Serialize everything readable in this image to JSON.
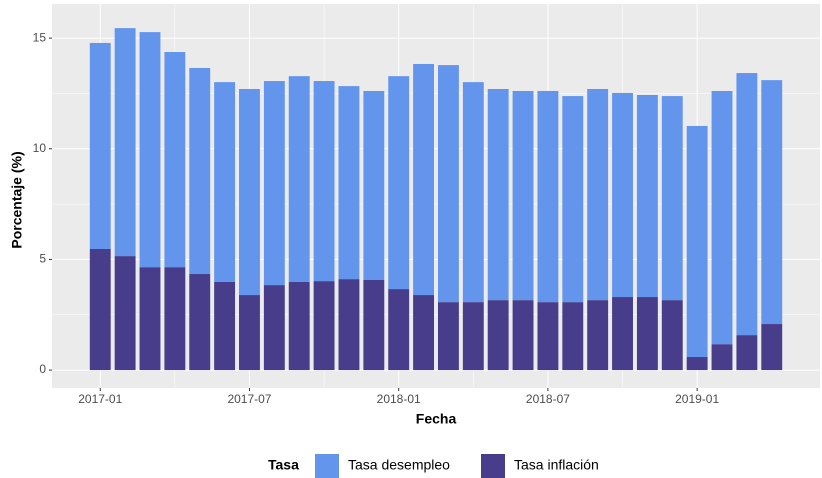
{
  "chart_data": {
    "type": "stacked-bar",
    "x_label": "Fecha",
    "y_label": "Porcentaje (%)",
    "legend_title": "Tasa",
    "legend": "bottom",
    "grid": true,
    "x": [
      "2017-01",
      "2017-02",
      "2017-03",
      "2017-04",
      "2017-05",
      "2017-06",
      "2017-07",
      "2017-08",
      "2017-09",
      "2017-10",
      "2017-11",
      "2017-12",
      "2018-01",
      "2018-02",
      "2018-03",
      "2018-04",
      "2018-05",
      "2018-06",
      "2018-07",
      "2018-08",
      "2018-09",
      "2018-10",
      "2018-11",
      "2018-12",
      "2019-01",
      "2019-02",
      "2019-03",
      "2019-04"
    ],
    "xticks": [
      "2017-01",
      "2017-07",
      "2018-01",
      "2018-07",
      "2019-01"
    ],
    "ylim": [
      -0.81,
      16.54
    ],
    "yticks": [
      0,
      5,
      10,
      15
    ],
    "series": [
      {
        "name": "Tasa desempleo",
        "color": "#6495ed",
        "values": [
          9.31,
          10.3,
          10.62,
          9.72,
          9.31,
          9.03,
          9.31,
          9.22,
          9.3,
          9.04,
          8.72,
          8.54,
          9.62,
          10.44,
          10.71,
          9.94,
          9.54,
          9.45,
          9.54,
          9.31,
          9.54,
          9.22,
          9.13,
          9.22,
          10.44,
          11.44,
          11.84,
          11.02
        ]
      },
      {
        "name": "Tasa inflación",
        "color": "#483d8b",
        "values": [
          5.47,
          5.15,
          4.65,
          4.65,
          4.34,
          3.98,
          3.39,
          3.84,
          3.98,
          4.02,
          4.11,
          4.07,
          3.66,
          3.39,
          3.07,
          3.07,
          3.16,
          3.16,
          3.07,
          3.07,
          3.16,
          3.3,
          3.3,
          3.16,
          0.59,
          1.17,
          1.58,
          2.08
        ]
      }
    ]
  }
}
